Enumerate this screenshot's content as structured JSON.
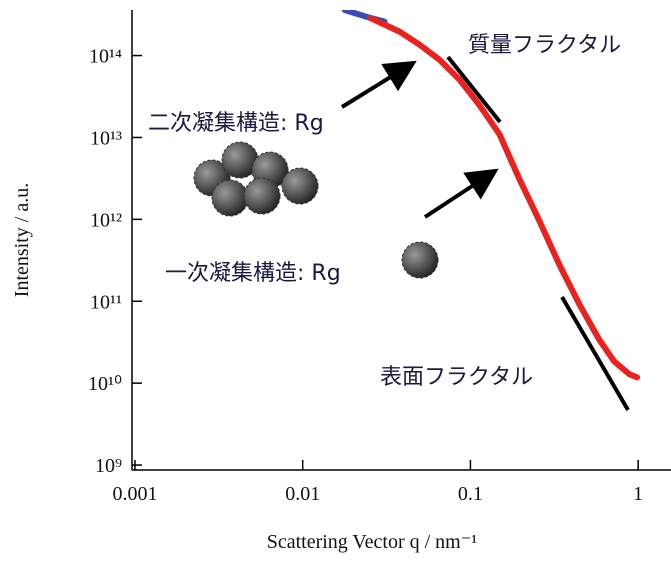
{
  "chart_data": {
    "type": "line",
    "x_label": "Scattering Vector q / nm⁻¹",
    "y_label": "Intensity / a.u.",
    "log_x": true,
    "log_y": true,
    "xlim": [
      0.00096,
      1.57
    ],
    "ylim": [
      870000000,
      360000000000000
    ],
    "xticks": [
      0.001,
      0.01,
      0.1,
      1
    ],
    "yticks": [
      {
        "value": 1000000000,
        "label": "10⁹"
      },
      {
        "value": 10000000000,
        "label": "10¹⁰"
      },
      {
        "value": 100000000000,
        "label": "10¹¹"
      },
      {
        "value": 1000000000000,
        "label": "10¹²"
      },
      {
        "value": 10000000000000,
        "label": "10¹³"
      },
      {
        "value": 100000000000000,
        "label": "10¹⁴"
      }
    ],
    "series": [
      {
        "color": "#3a4fb0",
        "x": [
          0.0178,
          0.0251,
          0.0308
        ],
        "values": [
          360000000000000,
          290000000000000,
          260000000000000
        ]
      },
      {
        "color": "#e8231f",
        "x": [
          0.0251,
          0.0378,
          0.0497,
          0.0654,
          0.086,
          0.113,
          0.149,
          0.196,
          0.258,
          0.339,
          0.446,
          0.586,
          0.719,
          0.884,
          0.986
        ],
        "values": [
          290000000000000,
          196000000000000,
          136000000000000,
          89000000000000,
          51000000000000,
          25000000000000,
          10900000000000,
          3100000000000,
          950000000000,
          280000000000,
          92000000000,
          34000000000,
          18500000000,
          12900000000,
          11800000000
        ]
      }
    ],
    "annotations": [
      "質量フラクタル",
      "二次凝集構造: Rg",
      "一次凝集構造: Rg",
      "表面フラクタル"
    ]
  }
}
